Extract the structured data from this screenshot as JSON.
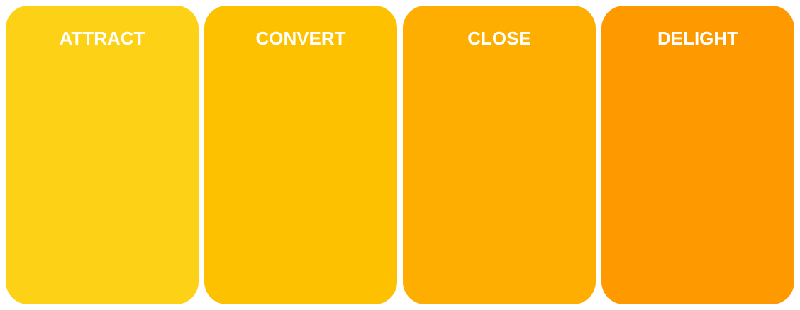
{
  "stages": [
    {
      "title": "ATTRACT",
      "color": "#FCD116"
    },
    {
      "title": "CONVERT",
      "color": "#FDC100"
    },
    {
      "title": "CLOSE",
      "color": "#FDAE00"
    },
    {
      "title": "DELIGHT",
      "color": "#FE9900"
    }
  ]
}
